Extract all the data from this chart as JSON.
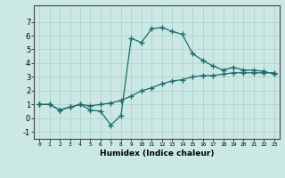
{
  "xlabel": "Humidex (Indice chaleur)",
  "bg_color": "#cce8e4",
  "line_color": "#1a6b6b",
  "grid_color": "#aed4d0",
  "xlim": [
    -0.5,
    23.5
  ],
  "ylim": [
    -1.5,
    8.2
  ],
  "xticks": [
    0,
    1,
    2,
    3,
    4,
    5,
    6,
    7,
    8,
    9,
    10,
    11,
    12,
    13,
    14,
    15,
    16,
    17,
    18,
    19,
    20,
    21,
    22,
    23
  ],
  "yticks": [
    -1,
    0,
    1,
    2,
    3,
    4,
    5,
    6,
    7
  ],
  "line1_x": [
    0,
    1,
    2,
    3,
    4,
    5,
    6,
    7,
    8,
    9,
    10,
    11,
    12,
    13,
    14,
    15,
    16,
    17,
    18,
    19,
    20,
    21,
    22,
    23
  ],
  "line1_y": [
    1.0,
    1.0,
    0.6,
    0.8,
    1.0,
    0.6,
    0.5,
    -0.5,
    0.2,
    5.8,
    5.5,
    6.5,
    6.6,
    6.3,
    6.1,
    4.7,
    4.2,
    3.8,
    3.5,
    3.7,
    3.5,
    3.5,
    3.4,
    3.2
  ],
  "line2_x": [
    0,
    1,
    2,
    3,
    4,
    5,
    6,
    7,
    8,
    9,
    10,
    11,
    12,
    13,
    14,
    15,
    16,
    17,
    18,
    19,
    20,
    21,
    22,
    23
  ],
  "line2_y": [
    1.0,
    1.0,
    0.6,
    0.8,
    1.0,
    0.9,
    1.0,
    1.1,
    1.3,
    1.6,
    2.0,
    2.2,
    2.5,
    2.7,
    2.8,
    3.0,
    3.1,
    3.1,
    3.2,
    3.3,
    3.3,
    3.3,
    3.3,
    3.3
  ]
}
